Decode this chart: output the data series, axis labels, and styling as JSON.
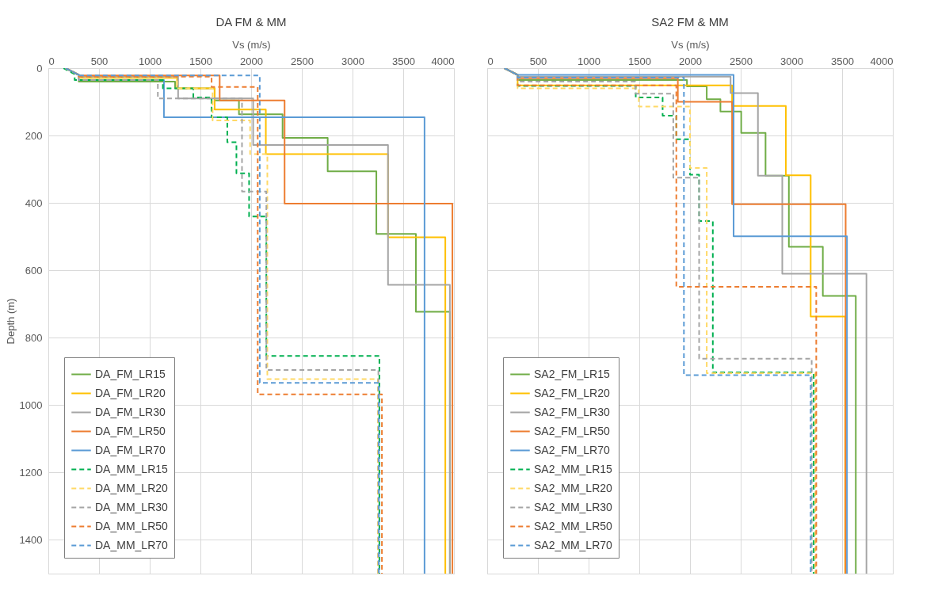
{
  "chart_data": [
    {
      "type": "line",
      "title": "DA FM & MM",
      "xlabel": "Vs (m/s)",
      "ylabel": "Depth (m)",
      "xlim": [
        0,
        4000
      ],
      "xticks": [
        0,
        500,
        1000,
        1500,
        2000,
        2500,
        3000,
        3500,
        4000
      ],
      "ylim": [
        1500,
        0
      ],
      "yticks": [
        0,
        200,
        400,
        600,
        800,
        1000,
        1200,
        1400
      ],
      "grid": true,
      "legend": "bottom left",
      "series": [
        {
          "name": "DA_FM_LR15",
          "color": "#70ad47",
          "line_style": "solid",
          "x": [
            170,
            300,
            300,
            1250,
            1250,
            1640,
            1640,
            1880,
            1880,
            2310,
            2310,
            2755,
            2755,
            3235,
            3235,
            3625,
            3625,
            3960,
            3960
          ],
          "values": [
            0,
            20,
            40,
            40,
            60,
            60,
            96,
            96,
            137,
            137,
            207,
            207,
            306,
            306,
            492,
            492,
            723,
            723,
            1500
          ]
        },
        {
          "name": "DA_FM_LR20",
          "color": "#ffc000",
          "line_style": "solid",
          "x": [
            170,
            300,
            300,
            1270,
            1270,
            1640,
            1640,
            2145,
            2145,
            3350,
            3350,
            3915,
            3915
          ],
          "values": [
            0,
            20,
            29,
            29,
            60,
            60,
            123,
            123,
            255,
            255,
            502,
            502,
            1500
          ]
        },
        {
          "name": "DA_FM_LR30",
          "color": "#a5a5a5",
          "line_style": "solid",
          "x": [
            170,
            300,
            300,
            1280,
            1280,
            2020,
            2020,
            3350,
            3350,
            3960,
            3960
          ],
          "values": [
            0,
            20,
            25,
            25,
            90,
            90,
            228,
            228,
            643,
            643,
            1500
          ]
        },
        {
          "name": "DA_FM_LR50",
          "color": "#ed7d31",
          "line_style": "solid",
          "x": [
            170,
            300,
            300,
            1690,
            1690,
            2330,
            2330,
            3985,
            3985
          ],
          "values": [
            0,
            20,
            22,
            22,
            96,
            96,
            402,
            402,
            1500
          ]
        },
        {
          "name": "DA_FM_LR70",
          "color": "#5b9bd5",
          "line_style": "solid",
          "x": [
            170,
            300,
            300,
            1140,
            1140,
            3710,
            3710
          ],
          "values": [
            0,
            20,
            35,
            35,
            146,
            146,
            1500
          ]
        },
        {
          "name": "DA_MM_LR15",
          "color": "#00b050",
          "line_style": "dashed",
          "x": [
            150,
            260,
            260,
            1130,
            1130,
            1430,
            1430,
            1610,
            1610,
            1765,
            1765,
            1855,
            1855,
            1980,
            1980,
            2150,
            2150,
            3265,
            3265
          ],
          "values": [
            0,
            18,
            35,
            35,
            60,
            60,
            87,
            87,
            146,
            146,
            220,
            220,
            312,
            312,
            440,
            440,
            854,
            854,
            1500
          ]
        },
        {
          "name": "DA_MM_LR20",
          "color": "#ffd966",
          "line_style": "dashed",
          "x": [
            170,
            300,
            300,
            1270,
            1270,
            1620,
            1620,
            1990,
            1990,
            2160,
            2160,
            3250,
            3250
          ],
          "values": [
            0,
            20,
            30,
            30,
            60,
            60,
            155,
            155,
            255,
            255,
            923,
            923,
            1500
          ]
        },
        {
          "name": "DA_MM_LR30",
          "color": "#a5a5a5",
          "line_style": "dashed",
          "x": [
            170,
            300,
            300,
            1080,
            1080,
            1910,
            1910,
            2150,
            2150,
            3255,
            3255
          ],
          "values": [
            0,
            20,
            35,
            35,
            90,
            90,
            366,
            366,
            896,
            896,
            1500
          ]
        },
        {
          "name": "DA_MM_LR50",
          "color": "#ed7d31",
          "line_style": "dashed",
          "x": [
            170,
            300,
            300,
            1610,
            1610,
            2065,
            2065,
            3290,
            3290
          ],
          "values": [
            0,
            20,
            25,
            25,
            56,
            56,
            968,
            968,
            1500
          ]
        },
        {
          "name": "DA_MM_LR70",
          "color": "#5b9bd5",
          "line_style": "dashed",
          "x": [
            170,
            300,
            300,
            2085,
            2085,
            3260,
            3260
          ],
          "values": [
            0,
            20,
            22,
            22,
            934,
            934,
            1500
          ]
        }
      ]
    },
    {
      "type": "line",
      "title": "SA2 FM & MM",
      "xlabel": "Vs (m/s)",
      "xlim": [
        0,
        4000
      ],
      "xticks": [
        0,
        500,
        1000,
        1500,
        2000,
        2500,
        3000,
        3500,
        4000
      ],
      "ylim": [
        1500,
        0
      ],
      "yticks": [
        0,
        200,
        400,
        600,
        800,
        1000,
        1200,
        1400
      ],
      "tick_labels": "x",
      "grid": true,
      "legend": "bottom left",
      "series": [
        {
          "name": "SA2_FM_LR15",
          "color": "#70ad47",
          "line_style": "solid",
          "x": [
            170,
            300,
            300,
            1970,
            1970,
            2165,
            2165,
            2300,
            2300,
            2505,
            2505,
            2745,
            2745,
            2975,
            2975,
            3310,
            3310,
            3635,
            3635
          ],
          "values": [
            0,
            20,
            35,
            35,
            54,
            54,
            92,
            92,
            129,
            129,
            192,
            192,
            319,
            319,
            530,
            530,
            676,
            676,
            1500
          ]
        },
        {
          "name": "SA2_FM_LR20",
          "color": "#ffc000",
          "line_style": "solid",
          "x": [
            170,
            300,
            300,
            2415,
            2415,
            2945,
            2945,
            3190,
            3190,
            3530,
            3530
          ],
          "values": [
            0,
            20,
            51,
            51,
            112,
            112,
            318,
            318,
            737,
            737,
            1500
          ]
        },
        {
          "name": "SA2_FM_LR30",
          "color": "#a5a5a5",
          "line_style": "solid",
          "x": [
            170,
            300,
            300,
            2400,
            2400,
            2670,
            2670,
            2910,
            2910,
            3740,
            3740
          ],
          "values": [
            0,
            20,
            25,
            25,
            74,
            74,
            319,
            319,
            610,
            610,
            1500
          ]
        },
        {
          "name": "SA2_FM_LR50",
          "color": "#ed7d31",
          "line_style": "solid",
          "x": [
            170,
            300,
            300,
            1880,
            1880,
            2415,
            2415,
            3535,
            3535
          ],
          "values": [
            0,
            20,
            30,
            30,
            100,
            100,
            404,
            404,
            1500
          ]
        },
        {
          "name": "SA2_FM_LR70",
          "color": "#5b9bd5",
          "line_style": "solid",
          "x": [
            170,
            300,
            300,
            2430,
            2430,
            3548,
            3548
          ],
          "values": [
            0,
            20,
            20,
            20,
            499,
            499,
            1500
          ]
        },
        {
          "name": "SA2_MM_LR15",
          "color": "#00b050",
          "line_style": "dashed",
          "x": [
            170,
            300,
            300,
            1465,
            1465,
            1730,
            1730,
            1865,
            1865,
            2000,
            2000,
            2090,
            2090,
            2225,
            2225,
            3220,
            3220
          ],
          "values": [
            0,
            20,
            53,
            53,
            87,
            87,
            141,
            141,
            211,
            211,
            316,
            316,
            454,
            454,
            903,
            903,
            1500
          ]
        },
        {
          "name": "SA2_MM_LR20",
          "color": "#ffd966",
          "line_style": "dashed",
          "x": [
            170,
            300,
            300,
            1495,
            1495,
            2000,
            2000,
            2165,
            2165,
            3235,
            3235
          ],
          "values": [
            0,
            20,
            60,
            60,
            114,
            114,
            296,
            296,
            905,
            905,
            1500
          ]
        },
        {
          "name": "SA2_MM_LR30",
          "color": "#a5a5a5",
          "line_style": "dashed",
          "x": [
            170,
            300,
            300,
            1460,
            1460,
            1835,
            1835,
            2090,
            2090,
            3200,
            3200
          ],
          "values": [
            0,
            20,
            40,
            40,
            76,
            76,
            325,
            325,
            862,
            862,
            1500
          ]
        },
        {
          "name": "SA2_MM_LR50",
          "color": "#ed7d31",
          "line_style": "dashed",
          "x": [
            170,
            300,
            300,
            1865,
            1865,
            3245,
            3245
          ],
          "values": [
            0,
            20,
            51,
            51,
            649,
            649,
            1500
          ]
        },
        {
          "name": "SA2_MM_LR70",
          "color": "#5b9bd5",
          "line_style": "dashed",
          "x": [
            170,
            300,
            300,
            1940,
            1940,
            3190,
            3190
          ],
          "values": [
            0,
            20,
            28,
            28,
            911,
            911,
            1500
          ]
        }
      ]
    }
  ]
}
